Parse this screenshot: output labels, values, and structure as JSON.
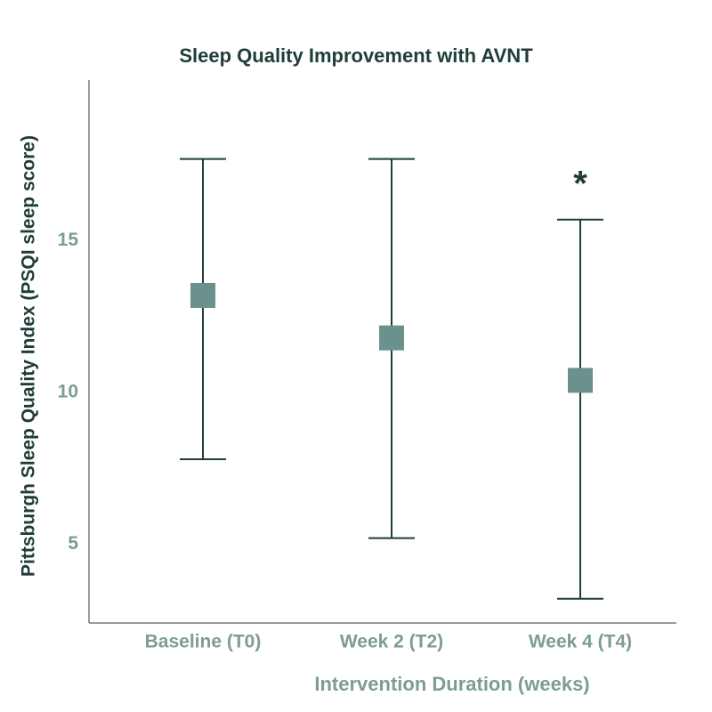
{
  "chart_data": {
    "type": "errorbar",
    "title": "Sleep Quality Improvement with AVNT",
    "xlabel": "Intervention Duration (weeks)",
    "ylabel": "Pittsburgh Sleep Quality Index (PSQI sleep score)",
    "categories": [
      "Baseline (T0)",
      "Week 2 (T2)",
      "Week 4 (T4)"
    ],
    "values": [
      13.2,
      11.8,
      10.4
    ],
    "lower": [
      7.8,
      5.2,
      3.2
    ],
    "upper": [
      17.7,
      17.7,
      15.7
    ],
    "marker_color": "#6b918c",
    "whisker_color": "#1f3d3a",
    "ylim": [
      2.4,
      20.3
    ],
    "yticks": [
      5,
      10,
      15
    ],
    "grid": false,
    "annotations": [
      {
        "text": "*",
        "category": 2
      }
    ]
  }
}
